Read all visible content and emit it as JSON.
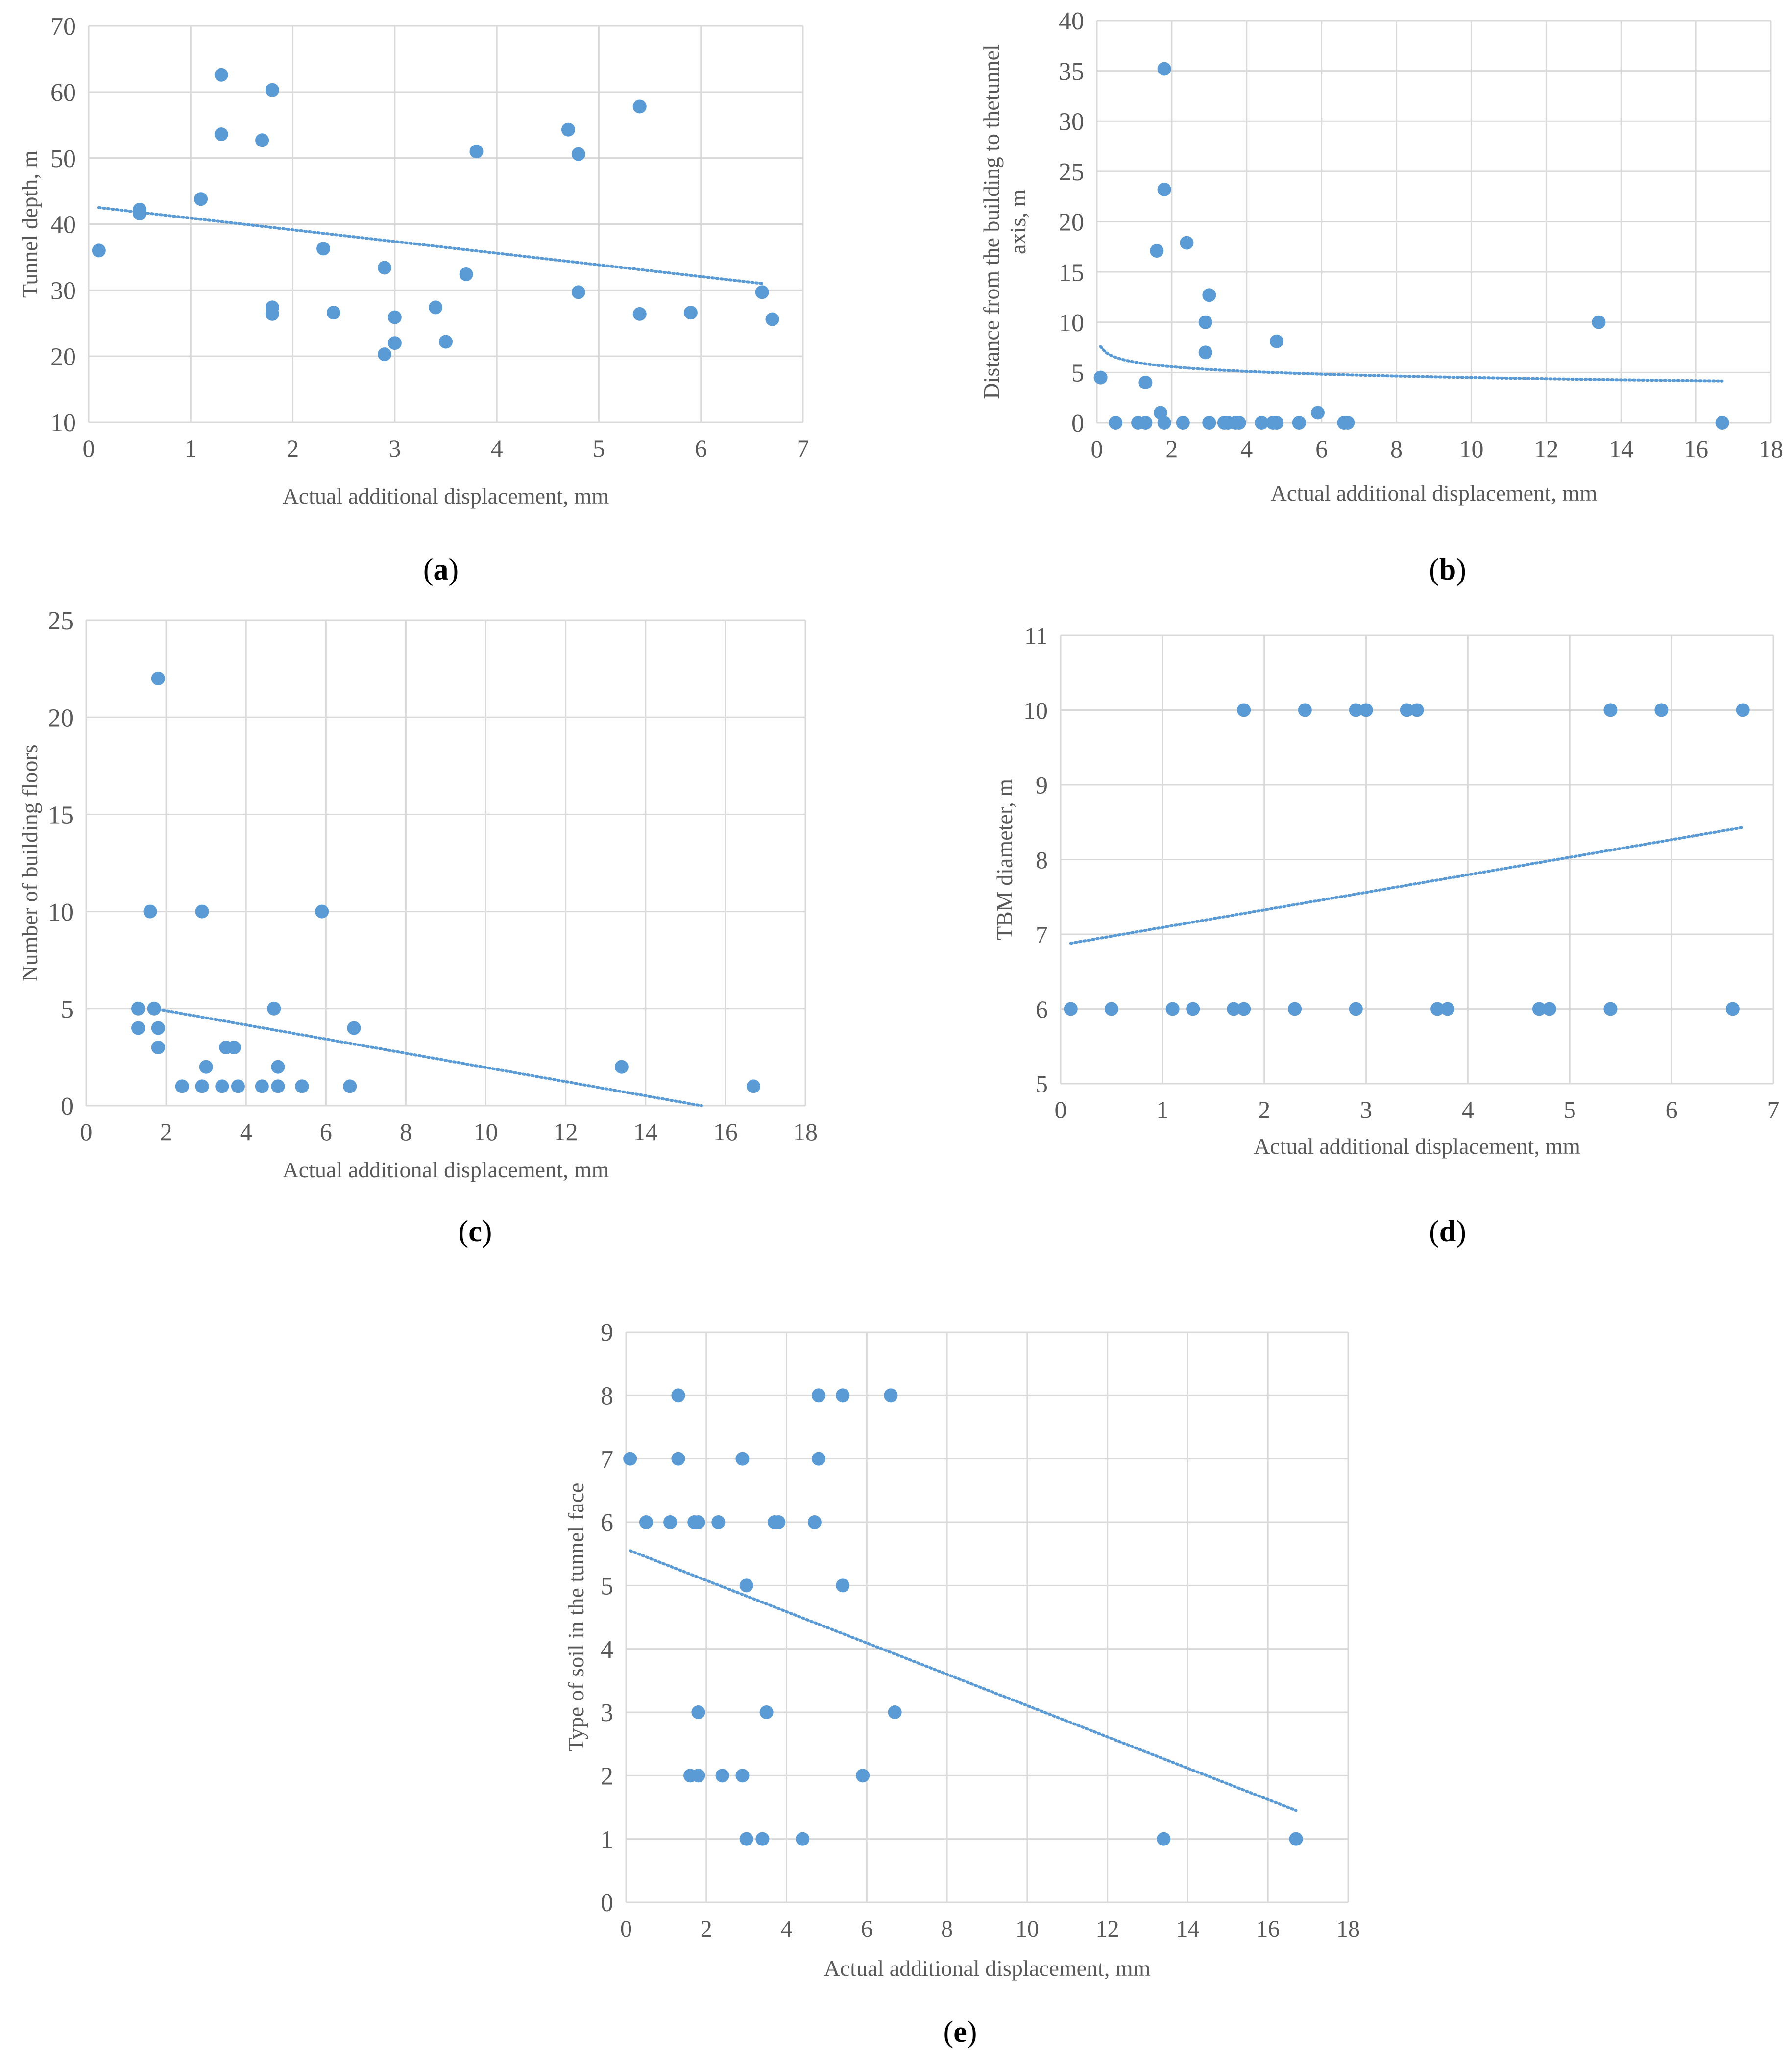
{
  "colors": {
    "marker": "#5b9bd5",
    "trend": "#5b9bd5",
    "grid": "#d9d9d9",
    "axis_text": "#595959",
    "caption_text": "#000000"
  },
  "chart_data": [
    {
      "id": "a",
      "type": "scatter",
      "caption": "(a)",
      "caption_letter": "a",
      "xlabel": "Actual additional displacement, mm",
      "ylabel": "Tunnel depth, m",
      "ylabel_lines": [
        "Tunnel depth, m"
      ],
      "xlim": [
        0,
        7
      ],
      "ylim": [
        10,
        70
      ],
      "xticks": [
        0,
        1,
        2,
        3,
        4,
        5,
        6,
        7
      ],
      "yticks": [
        10,
        20,
        30,
        40,
        50,
        60,
        70
      ],
      "grid": true,
      "trendline": {
        "type": "linear",
        "from": [
          0.1,
          42.5
        ],
        "to": [
          6.6,
          31
        ]
      },
      "points": [
        [
          0.1,
          36
        ],
        [
          0.5,
          42.2
        ],
        [
          0.5,
          41.6
        ],
        [
          1.1,
          43.8
        ],
        [
          1.3,
          62.6
        ],
        [
          1.3,
          53.6
        ],
        [
          1.7,
          52.7
        ],
        [
          1.8,
          60.3
        ],
        [
          1.8,
          27.4
        ],
        [
          1.8,
          26.4
        ],
        [
          2.3,
          36.3
        ],
        [
          2.4,
          26.6
        ],
        [
          2.9,
          33.4
        ],
        [
          2.9,
          20.3
        ],
        [
          3.0,
          25.9
        ],
        [
          3.0,
          22.0
        ],
        [
          3.4,
          27.4
        ],
        [
          3.5,
          22.2
        ],
        [
          3.7,
          32.4
        ],
        [
          3.8,
          51.0
        ],
        [
          4.7,
          54.3
        ],
        [
          4.8,
          50.6
        ],
        [
          4.8,
          29.7
        ],
        [
          5.4,
          57.8
        ],
        [
          5.4,
          26.4
        ],
        [
          5.9,
          26.6
        ],
        [
          6.6,
          29.7
        ],
        [
          6.7,
          25.6
        ]
      ]
    },
    {
      "id": "b",
      "type": "scatter",
      "caption": "(b)",
      "caption_letter": "b",
      "xlabel": "Actual additional displacement, mm",
      "ylabel": "Distance from the building to thetunnel axis, m",
      "ylabel_lines": [
        "Distance from the building to thetunnel",
        "axis, m"
      ],
      "xlim": [
        0,
        18
      ],
      "ylim": [
        0,
        40
      ],
      "xticks": [
        0,
        2,
        4,
        6,
        8,
        10,
        12,
        14,
        16,
        18
      ],
      "yticks": [
        0,
        5,
        10,
        15,
        20,
        25,
        30,
        35,
        40
      ],
      "grid": true,
      "trendline": {
        "type": "logarithmic",
        "x_start": 0.1,
        "x_end": 16.7,
        "a": 6.04,
        "b": -0.67
      },
      "points": [
        [
          0.1,
          4.5
        ],
        [
          0.5,
          0
        ],
        [
          1.1,
          0
        ],
        [
          1.3,
          0
        ],
        [
          1.3,
          4
        ],
        [
          1.6,
          17.1
        ],
        [
          1.7,
          1
        ],
        [
          1.8,
          0
        ],
        [
          1.8,
          35.2
        ],
        [
          1.8,
          23.2
        ],
        [
          2.3,
          0
        ],
        [
          2.4,
          17.9
        ],
        [
          2.9,
          10
        ],
        [
          2.9,
          7
        ],
        [
          3.0,
          12.7
        ],
        [
          3.0,
          0
        ],
        [
          3.4,
          0
        ],
        [
          3.5,
          0
        ],
        [
          3.7,
          0
        ],
        [
          3.8,
          0
        ],
        [
          4.4,
          0
        ],
        [
          4.7,
          0
        ],
        [
          4.8,
          8.1
        ],
        [
          4.8,
          0
        ],
        [
          5.4,
          0
        ],
        [
          5.9,
          1
        ],
        [
          6.6,
          0
        ],
        [
          6.7,
          0
        ],
        [
          13.4,
          10
        ],
        [
          16.7,
          0
        ]
      ]
    },
    {
      "id": "c",
      "type": "scatter",
      "caption": "(c)",
      "caption_letter": "c",
      "xlabel": "Actual additional displacement, mm",
      "ylabel": "Number of building floors",
      "ylabel_lines": [
        "Number of building floors"
      ],
      "xlim": [
        0,
        18
      ],
      "ylim": [
        0,
        25
      ],
      "xticks": [
        0,
        2,
        4,
        6,
        8,
        10,
        12,
        14,
        16,
        18
      ],
      "yticks": [
        0,
        5,
        10,
        15,
        20,
        25
      ],
      "grid": true,
      "trendline": {
        "type": "linear",
        "from": [
          1.7,
          5.0
        ],
        "to": [
          15.4,
          0
        ]
      },
      "points": [
        [
          1.3,
          5
        ],
        [
          1.3,
          4
        ],
        [
          1.6,
          10
        ],
        [
          1.7,
          5
        ],
        [
          1.8,
          22
        ],
        [
          1.8,
          4
        ],
        [
          1.8,
          3
        ],
        [
          2.4,
          1
        ],
        [
          2.9,
          10
        ],
        [
          2.9,
          1
        ],
        [
          3.0,
          2
        ],
        [
          3.4,
          1
        ],
        [
          3.5,
          3
        ],
        [
          3.7,
          3
        ],
        [
          3.8,
          1
        ],
        [
          4.4,
          1
        ],
        [
          4.7,
          5
        ],
        [
          4.8,
          2
        ],
        [
          4.8,
          1
        ],
        [
          5.4,
          1
        ],
        [
          5.4,
          1
        ],
        [
          5.9,
          10
        ],
        [
          6.6,
          1
        ],
        [
          6.7,
          4
        ],
        [
          13.4,
          2
        ],
        [
          16.7,
          1
        ]
      ]
    },
    {
      "id": "d",
      "type": "scatter",
      "caption": "(d)",
      "caption_letter": "d",
      "xlabel": "Actual additional displacement, mm",
      "ylabel": "TBM diameter, m",
      "ylabel_lines": [
        "TBM diameter, m"
      ],
      "xlim": [
        0,
        7
      ],
      "ylim": [
        5,
        11
      ],
      "xticks": [
        0,
        1,
        2,
        3,
        4,
        5,
        6,
        7
      ],
      "yticks": [
        5,
        6,
        7,
        8,
        9,
        10,
        11
      ],
      "grid": true,
      "trendline": {
        "type": "linear",
        "from": [
          0.1,
          6.88
        ],
        "to": [
          6.7,
          8.43
        ]
      },
      "points": [
        [
          0.1,
          6
        ],
        [
          0.5,
          6
        ],
        [
          1.1,
          6
        ],
        [
          1.3,
          6
        ],
        [
          1.7,
          6
        ],
        [
          1.8,
          6
        ],
        [
          1.8,
          10
        ],
        [
          2.3,
          6
        ],
        [
          2.4,
          10
        ],
        [
          2.9,
          10
        ],
        [
          2.9,
          6
        ],
        [
          3.0,
          10
        ],
        [
          3.4,
          10
        ],
        [
          3.5,
          10
        ],
        [
          3.7,
          6
        ],
        [
          3.8,
          6
        ],
        [
          4.7,
          6
        ],
        [
          4.8,
          6
        ],
        [
          5.4,
          10
        ],
        [
          5.4,
          6
        ],
        [
          5.9,
          10
        ],
        [
          6.6,
          6
        ],
        [
          6.7,
          10
        ]
      ]
    },
    {
      "id": "e",
      "type": "scatter",
      "caption": "(e)",
      "caption_letter": "e",
      "xlabel": "Actual additional displacement, mm",
      "ylabel": "Type of soil in the tunnel face",
      "ylabel_lines": [
        "Type of soil in the tunnel face"
      ],
      "xlim": [
        0,
        18
      ],
      "ylim": [
        0,
        9
      ],
      "xticks": [
        0,
        2,
        4,
        6,
        8,
        10,
        12,
        14,
        16,
        18
      ],
      "yticks": [
        0,
        1,
        2,
        3,
        4,
        5,
        6,
        7,
        8,
        9
      ],
      "grid": true,
      "trendline": {
        "type": "linear",
        "from": [
          0.1,
          5.55
        ],
        "to": [
          16.7,
          1.45
        ]
      },
      "points": [
        [
          0.1,
          7
        ],
        [
          0.5,
          6
        ],
        [
          1.1,
          6
        ],
        [
          1.3,
          8
        ],
        [
          1.3,
          7
        ],
        [
          1.6,
          2
        ],
        [
          1.7,
          6
        ],
        [
          1.8,
          6
        ],
        [
          1.8,
          3
        ],
        [
          1.8,
          2
        ],
        [
          2.3,
          6
        ],
        [
          2.4,
          2
        ],
        [
          2.9,
          7
        ],
        [
          2.9,
          2
        ],
        [
          3.0,
          5
        ],
        [
          3.0,
          1
        ],
        [
          3.4,
          1
        ],
        [
          3.5,
          3
        ],
        [
          3.7,
          6
        ],
        [
          3.8,
          6
        ],
        [
          4.4,
          1
        ],
        [
          4.7,
          6
        ],
        [
          4.8,
          8
        ],
        [
          4.8,
          7
        ],
        [
          5.4,
          8
        ],
        [
          5.4,
          5
        ],
        [
          5.9,
          2
        ],
        [
          6.6,
          8
        ],
        [
          6.7,
          3
        ],
        [
          13.4,
          1
        ],
        [
          16.7,
          1
        ]
      ]
    }
  ]
}
